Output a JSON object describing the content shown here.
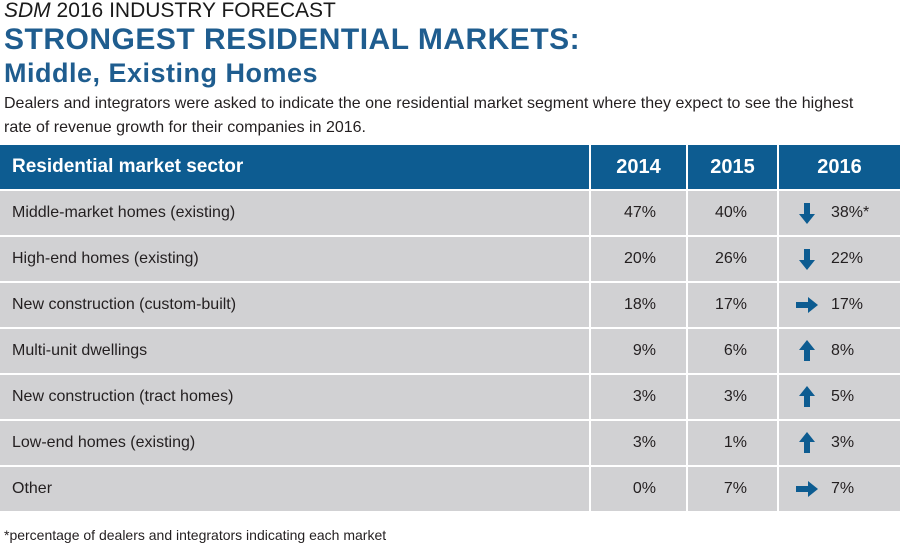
{
  "kicker": {
    "brand": "SDM",
    "rest": "2016 INDUSTRY FORECAST"
  },
  "title_line1": "STRONGEST RESIDENTIAL MARKETS:",
  "title_line2": "Middle, Existing Homes",
  "description": "Dealers and integrators were asked to indicate the one residential market segment where they expect to see the highest rate of revenue growth for their companies in 2016.",
  "footnote": "*percentage of dealers and integrators indicating each market",
  "colors": {
    "header_bg": "#0d5c91",
    "title": "#1f5d8f",
    "row_bg": "#d1d1d3",
    "arrow": "#0d5c91"
  },
  "chart_data": {
    "type": "table",
    "columns": [
      "Residential market sector",
      "2014",
      "2015",
      "2016"
    ],
    "rows": [
      {
        "sector": "Middle-market homes (existing)",
        "y2014": "47%",
        "y2015": "40%",
        "y2016": "38%*",
        "trend": "down"
      },
      {
        "sector": "High-end homes (existing)",
        "y2014": "20%",
        "y2015": "26%",
        "y2016": "22%",
        "trend": "down"
      },
      {
        "sector": "New construction (custom-built)",
        "y2014": "18%",
        "y2015": "17%",
        "y2016": "17%",
        "trend": "flat"
      },
      {
        "sector": "Multi-unit dwellings",
        "y2014": "9%",
        "y2015": "6%",
        "y2016": "8%",
        "trend": "up"
      },
      {
        "sector": "New construction (tract homes)",
        "y2014": "3%",
        "y2015": "3%",
        "y2016": "5%",
        "trend": "up"
      },
      {
        "sector": "Low-end homes (existing)",
        "y2014": "3%",
        "y2015": "1%",
        "y2016": "3%",
        "trend": "up"
      },
      {
        "sector": "Other",
        "y2014": "0%",
        "y2015": "7%",
        "y2016": "7%",
        "trend": "flat"
      }
    ]
  }
}
